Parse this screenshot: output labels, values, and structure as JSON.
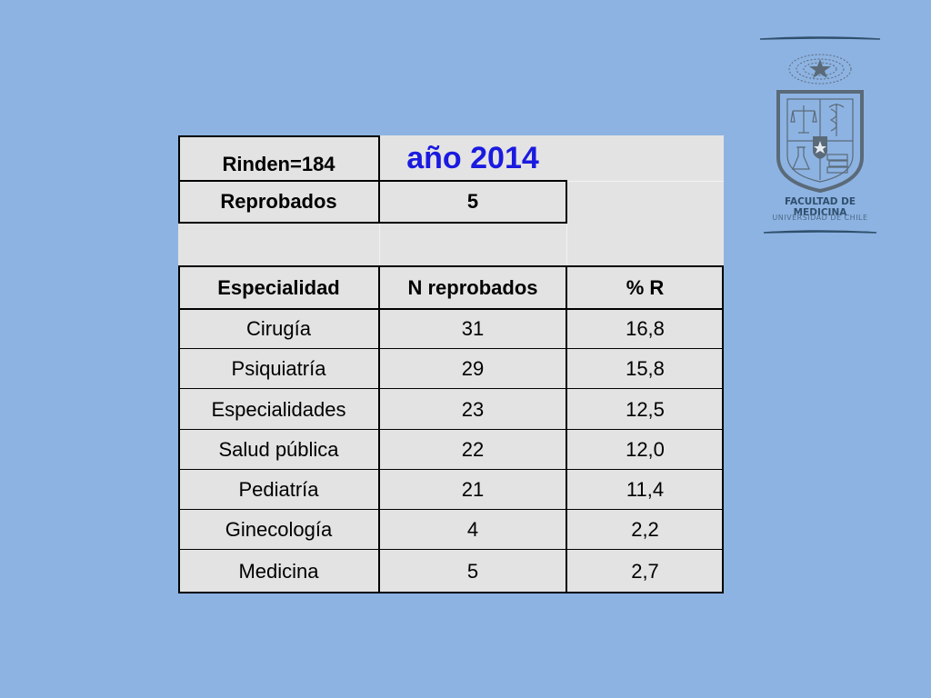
{
  "header": {
    "rinden_label": "Rinden=184",
    "year_label": "año 2014",
    "reprobados_label": "Reprobados",
    "reprobados_value": "5"
  },
  "table": {
    "columns": [
      "Especialidad",
      "N reprobados",
      "% R"
    ],
    "rows": [
      [
        "Cirugía",
        "31",
        "16,8"
      ],
      [
        "Psiquiatría",
        "29",
        "15,8"
      ],
      [
        "Especialidades",
        "23",
        "12,5"
      ],
      [
        "Salud pública",
        "22",
        "12,0"
      ],
      [
        "Pediatría",
        "21",
        "11,4"
      ],
      [
        "Ginecología",
        "4",
        "2,2"
      ],
      [
        "Medicina",
        "5",
        "2,7"
      ]
    ]
  },
  "logo": {
    "title": "FACULTAD DE MEDICINA",
    "subtitle": "UNIVERSIDAD DE CHILE"
  },
  "colors": {
    "background": "#8db3e2",
    "table_fill": "#e3e3e3",
    "year_text": "#1a1ae0",
    "logo": "#2f4f6d"
  }
}
